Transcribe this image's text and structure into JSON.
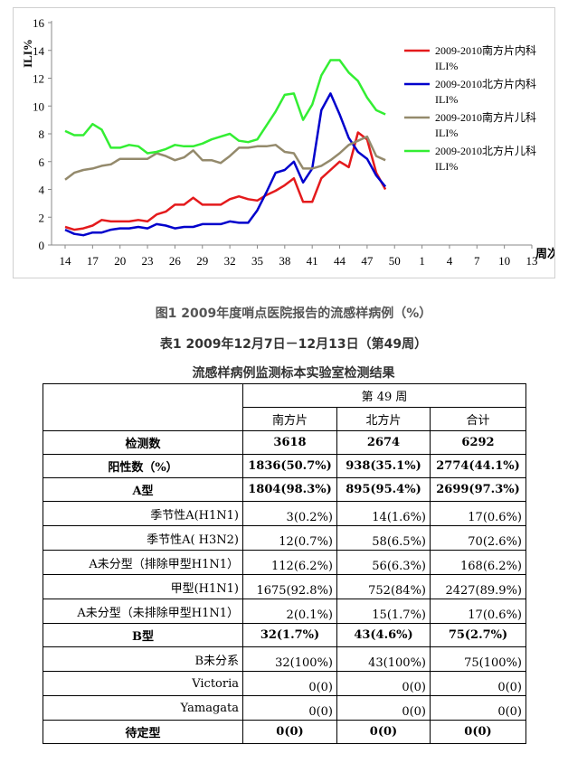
{
  "chart_data": {
    "type": "line",
    "ylabel": "ILI%",
    "xlabel": "周次",
    "ylim": [
      0,
      16
    ],
    "yticks": [
      0,
      2,
      4,
      6,
      8,
      10,
      12,
      14,
      16
    ],
    "x_tick_labels": [
      "14",
      "17",
      "20",
      "23",
      "26",
      "29",
      "32",
      "35",
      "38",
      "41",
      "44",
      "47",
      "50",
      "1",
      "4",
      "7",
      "10",
      "13"
    ],
    "grid": false,
    "legend_position": "right",
    "weeks": [
      14,
      15,
      16,
      17,
      18,
      19,
      20,
      21,
      22,
      23,
      24,
      25,
      26,
      27,
      28,
      29,
      30,
      31,
      32,
      33,
      34,
      35,
      36,
      37,
      38,
      39,
      40,
      41,
      42,
      43,
      44,
      45,
      46,
      47,
      48,
      49
    ],
    "series": [
      {
        "name": "2009-2010南方片内科ILI%",
        "legend_line1": "2009-2010南方片内科",
        "legend_line2": "ILI%",
        "color": "#e41a1c",
        "values": [
          1.3,
          1.1,
          1.2,
          1.4,
          1.8,
          1.7,
          1.7,
          1.7,
          1.8,
          1.7,
          2.2,
          2.4,
          2.9,
          2.9,
          3.4,
          2.9,
          2.9,
          2.9,
          3.3,
          3.5,
          3.3,
          3.2,
          3.6,
          3.9,
          4.3,
          4.8,
          3.1,
          3.1,
          4.8,
          5.4,
          6.0,
          5.6,
          8.1,
          7.6,
          5.2,
          4.0
        ]
      },
      {
        "name": "2009-2010北方片内科ILI%",
        "legend_line1": "2009-2010北方片内科",
        "legend_line2": "ILI%",
        "color": "#0000cc",
        "values": [
          1.1,
          0.8,
          0.7,
          0.9,
          0.9,
          1.1,
          1.2,
          1.2,
          1.3,
          1.2,
          1.5,
          1.4,
          1.2,
          1.3,
          1.3,
          1.5,
          1.5,
          1.5,
          1.7,
          1.6,
          1.6,
          2.5,
          3.8,
          5.2,
          5.4,
          6.0,
          4.5,
          5.5,
          9.7,
          10.9,
          9.4,
          7.7,
          6.7,
          6.2,
          5.0,
          4.2
        ]
      },
      {
        "name": "2009-2010南方片儿科ILI%",
        "legend_line1": "2009-2010南方片儿科",
        "legend_line2": "ILI%",
        "color": "#948a6c",
        "values": [
          4.7,
          5.2,
          5.4,
          5.5,
          5.7,
          5.8,
          6.2,
          6.2,
          6.2,
          6.2,
          6.6,
          6.4,
          6.1,
          6.3,
          6.8,
          6.1,
          6.1,
          5.9,
          6.4,
          7.0,
          7.0,
          7.1,
          7.1,
          7.2,
          6.7,
          6.6,
          5.5,
          5.5,
          5.7,
          6.1,
          6.6,
          7.2,
          7.5,
          7.8,
          6.4,
          6.1
        ]
      },
      {
        "name": "2009-2010北方片儿科ILI%",
        "legend_line1": "2009-2010北方片儿科",
        "legend_line2": "ILI%",
        "color": "#33ee33",
        "values": [
          8.2,
          7.9,
          7.9,
          8.7,
          8.3,
          7.0,
          7.0,
          7.2,
          7.1,
          6.6,
          6.7,
          6.9,
          7.2,
          7.1,
          7.1,
          7.3,
          7.6,
          7.8,
          8.0,
          7.5,
          7.4,
          7.6,
          8.6,
          9.6,
          10.8,
          10.9,
          9.0,
          10.1,
          12.2,
          13.3,
          13.3,
          12.4,
          11.8,
          10.6,
          9.7,
          9.4
        ]
      }
    ]
  },
  "figure_caption": "图1 2009年度哨点医院报告的流感样病例（%）",
  "table_caption": "表1 2009年12月7日－12月13日（第49周）",
  "table_subcaption": "流感样病例监测标本实验室检测结果",
  "table": {
    "week_header": "第 49 周",
    "columns": [
      "南方片",
      "北方片",
      "合计"
    ],
    "rows": [
      {
        "label": "检测数",
        "values": [
          "3618",
          "2674",
          "6292"
        ],
        "bold": true
      },
      {
        "label": "阳性数（%）",
        "values": [
          "1836(50.7%)",
          "938(35.1%)",
          "2774(44.1%)"
        ],
        "bold": true
      },
      {
        "label": "A型",
        "values": [
          "1804(98.3%)",
          "895(95.4%)",
          "2699(97.3%)"
        ],
        "bold": true
      },
      {
        "label": "季节性A(H1N1)",
        "values": [
          "3(0.2%)",
          "14(1.6%)",
          "17(0.6%)"
        ],
        "bold": false
      },
      {
        "label": "季节性A( H3N2)",
        "values": [
          "12(0.7%)",
          "58(6.5%)",
          "70(2.6%)"
        ],
        "bold": false
      },
      {
        "label": "A未分型（排除甲型H1N1）",
        "values": [
          "112(6.2%)",
          "56(6.3%)",
          "168(6.2%)"
        ],
        "bold": false
      },
      {
        "label": "甲型(H1N1)",
        "values": [
          "1675(92.8%)",
          "752(84%)",
          "2427(89.9%)"
        ],
        "bold": false
      },
      {
        "label": "A未分型（未排除甲型H1N1）",
        "values": [
          "2(0.1%)",
          "15(1.7%)",
          "17(0.6%)"
        ],
        "bold": false
      },
      {
        "label": "B型",
        "values": [
          "32(1.7%)",
          "43(4.6%)",
          "75(2.7%)"
        ],
        "bold": true
      },
      {
        "label": "B未分系",
        "values": [
          "32(100%)",
          "43(100%)",
          "75(100%)"
        ],
        "bold": false
      },
      {
        "label": "Victoria",
        "values": [
          "0(0)",
          "0(0)",
          "0(0)"
        ],
        "bold": false
      },
      {
        "label": "Yamagata",
        "values": [
          "0(0)",
          "0(0)",
          "0(0)"
        ],
        "bold": false
      },
      {
        "label": "待定型",
        "values": [
          "0(0)",
          "0(0)",
          "0(0)"
        ],
        "bold": true
      }
    ]
  }
}
